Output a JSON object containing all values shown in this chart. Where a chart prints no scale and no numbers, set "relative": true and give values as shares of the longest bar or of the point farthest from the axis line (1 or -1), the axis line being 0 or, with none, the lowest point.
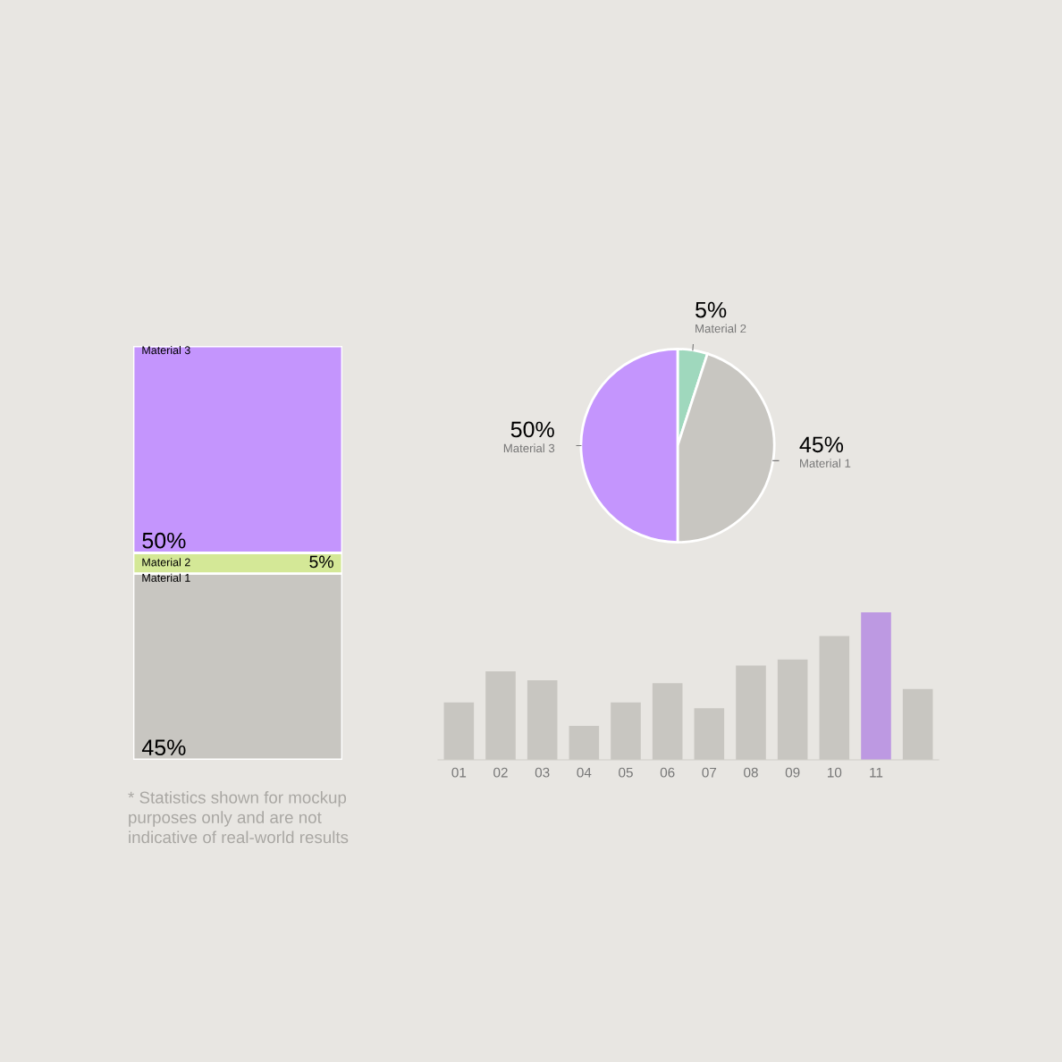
{
  "chart_data": [
    {
      "type": "bar",
      "stacked": true,
      "categories": [
        null
      ],
      "ylim": [
        0,
        100
      ],
      "tick_labels": false,
      "series": [
        {
          "name": "Material 1",
          "color": "#c8c6c1",
          "values": [
            45
          ],
          "value_labels": [
            "45%"
          ]
        },
        {
          "name": "Material 2",
          "color": "#d4e897",
          "values": [
            5
          ],
          "value_labels": [
            "5%"
          ]
        },
        {
          "name": "Material 3",
          "color": "#c495fd",
          "values": [
            50
          ],
          "value_labels": [
            "50%"
          ]
        }
      ],
      "annotations": [
        "* Statistics shown for mockup purposes only and are not indicative of real-world results"
      ]
    },
    {
      "type": "pie",
      "categories": [
        "Material 2",
        "Material 1",
        "Material 3"
      ],
      "values": [
        5,
        45,
        50
      ],
      "colors": [
        "#9fd8bd",
        "#c8c6c1",
        "#c495fd"
      ],
      "value_labels": [
        "5%",
        "45%",
        "50%"
      ]
    },
    {
      "type": "bar",
      "relative": true,
      "categories": [
        "01",
        "02",
        "03",
        "04",
        "05",
        "06",
        "07",
        "08",
        "09",
        "10",
        "11",
        null
      ],
      "values": [
        0.39,
        0.6,
        0.54,
        0.23,
        0.39,
        0.52,
        0.35,
        0.64,
        0.68,
        0.84,
        1,
        0.48
      ],
      "colors": [
        "#c8c6c1",
        "#c8c6c1",
        "#c8c6c1",
        "#c8c6c1",
        "#c8c6c1",
        "#c8c6c1",
        "#c8c6c1",
        "#c8c6c1",
        "#c8c6c1",
        "#c8c6c1",
        "#bd99e2",
        "#c8c6c1"
      ]
    }
  ]
}
